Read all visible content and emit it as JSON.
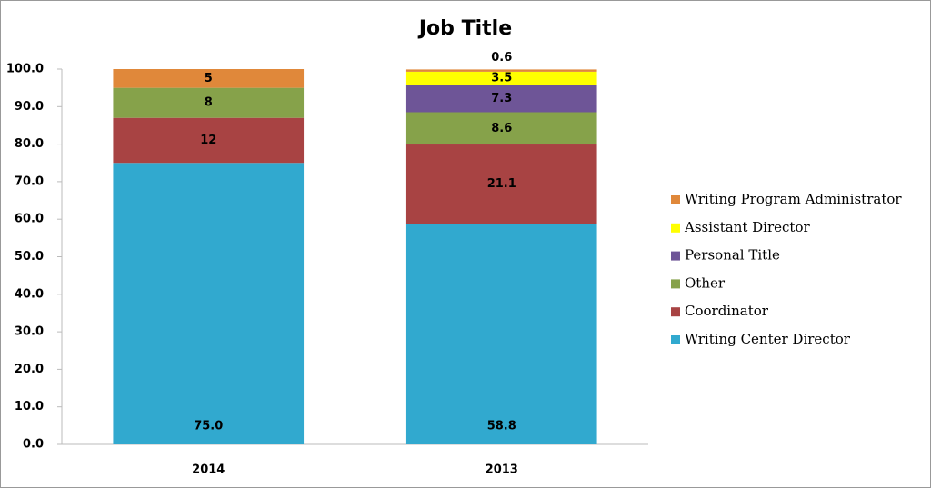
{
  "chart_data": {
    "type": "stacked-bar",
    "title": "Job Title",
    "categories": [
      "2014",
      "2013"
    ],
    "series": [
      {
        "name": "Writing Center Director",
        "color": "#31a9cf",
        "values": [
          75,
          58.8
        ],
        "value_labels": [
          "75.0",
          "58.8"
        ]
      },
      {
        "name": "Coordinator",
        "color": "#a84343",
        "values": [
          12,
          21.1
        ]
      },
      {
        "name": "Other",
        "color": "#86a24a",
        "values": [
          8,
          8.6
        ]
      },
      {
        "name": "Personal Title",
        "color": "#6e5597",
        "values": [
          null,
          7.3
        ]
      },
      {
        "name": "Assistant Director",
        "color": "#ffff00",
        "values": [
          null,
          3.5
        ]
      },
      {
        "name": "Writing Program Administrator",
        "color": "#e0883a",
        "values": [
          5,
          0.6
        ]
      }
    ],
    "ylim": [
      0,
      100
    ],
    "yticks": [
      {
        "value": 0,
        "label": "0.0"
      },
      {
        "value": 10,
        "label": "10.0"
      },
      {
        "value": 20,
        "label": "20.0"
      },
      {
        "value": 30,
        "label": "30.0"
      },
      {
        "value": 40,
        "label": "40.0"
      },
      {
        "value": 50,
        "label": "50.0"
      },
      {
        "value": 60,
        "label": "60.0"
      },
      {
        "value": 70,
        "label": "70.0"
      },
      {
        "value": 80,
        "label": "80.0"
      },
      {
        "value": 90,
        "label": "90.0"
      },
      {
        "value": 100,
        "label": "100.0"
      }
    ],
    "grid": false,
    "legend": "right"
  }
}
